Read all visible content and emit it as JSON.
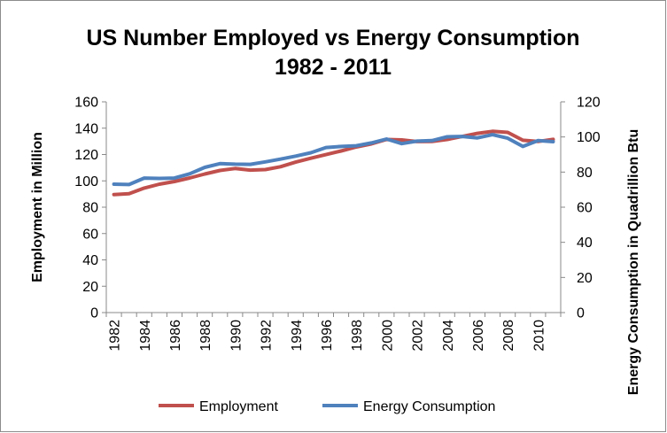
{
  "chart_data": {
    "type": "line",
    "title": "US Number Employed vs Energy Consumption",
    "subtitle": "1982 - 2011",
    "ylabel": "Employment in Million",
    "ylabel_right": "Energy Consumption in Quadrillion Btu",
    "xlabel": "",
    "ylim": [
      0,
      160
    ],
    "ylim_right": [
      0,
      120
    ],
    "y_ticks": [
      "0",
      "20",
      "40",
      "60",
      "80",
      "100",
      "120",
      "140",
      "160"
    ],
    "y_ticks_right": [
      "0",
      "20",
      "40",
      "60",
      "80",
      "100",
      "120"
    ],
    "x": [
      1982,
      1983,
      1984,
      1985,
      1986,
      1987,
      1988,
      1989,
      1990,
      1991,
      1992,
      1993,
      1994,
      1995,
      1996,
      1997,
      1998,
      1999,
      2000,
      2001,
      2002,
      2003,
      2004,
      2005,
      2006,
      2007,
      2008,
      2009,
      2010,
      2011
    ],
    "x_tick_labels": [
      "1982",
      "1984",
      "1986",
      "1988",
      "1990",
      "1992",
      "1994",
      "1996",
      "1998",
      "2000",
      "2002",
      "2004",
      "2006",
      "2008",
      "2010"
    ],
    "grid": false,
    "legend_position": "bottom",
    "series": [
      {
        "name": "Employment",
        "axis": "left",
        "color": "#c0504d",
        "values": [
          89.6,
          90.2,
          94.5,
          97.5,
          99.5,
          102.2,
          105.2,
          107.9,
          109.4,
          108.2,
          108.6,
          110.7,
          114.2,
          117.2,
          119.9,
          122.7,
          125.7,
          128.1,
          131.4,
          131.1,
          129.8,
          129.9,
          131.4,
          133.7,
          136.1,
          137.6,
          136.8,
          130.8,
          129.9,
          131.5
        ]
      },
      {
        "name": "Energy Consumption",
        "axis": "right",
        "color": "#4f81bd",
        "values": [
          73.1,
          72.9,
          76.6,
          76.4,
          76.6,
          79.0,
          82.7,
          84.8,
          84.5,
          84.4,
          85.8,
          87.4,
          89.1,
          91.0,
          94.0,
          94.6,
          95.0,
          96.6,
          98.8,
          96.2,
          97.6,
          97.9,
          100.1,
          100.3,
          99.5,
          101.3,
          99.3,
          94.6,
          97.9,
          97.3
        ]
      }
    ]
  }
}
